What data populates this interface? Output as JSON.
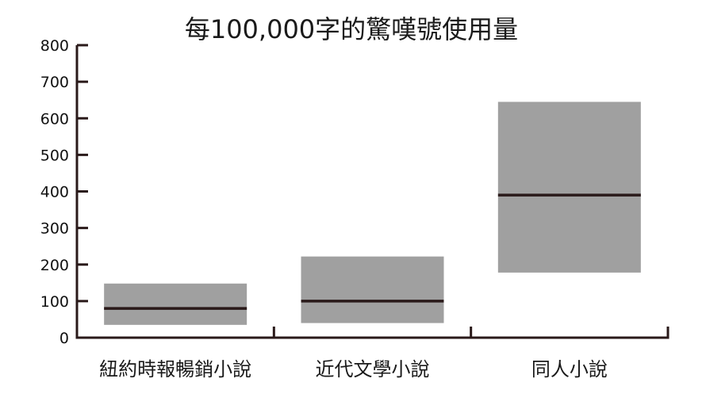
{
  "chart_data": {
    "type": "box",
    "title": "每100,000字的驚嘆號使用量",
    "xlabel": "",
    "ylabel": "",
    "ylim": [
      0,
      800
    ],
    "yticks": [
      0,
      100,
      200,
      300,
      400,
      500,
      600,
      700,
      800
    ],
    "grid": false,
    "categories": [
      "紐約時報暢銷小說",
      "近代文學小說",
      "同人小說"
    ],
    "boxes": [
      {
        "category": "紐約時報暢銷小說",
        "low": 35,
        "median": 80,
        "high": 148
      },
      {
        "category": "近代文學小說",
        "low": 40,
        "median": 100,
        "high": 222
      },
      {
        "category": "同人小說",
        "low": 178,
        "median": 390,
        "high": 645
      }
    ],
    "colors": {
      "box": "#a0a0a0",
      "median": "#2a1a1a",
      "axis": "#2a1a1a"
    }
  }
}
